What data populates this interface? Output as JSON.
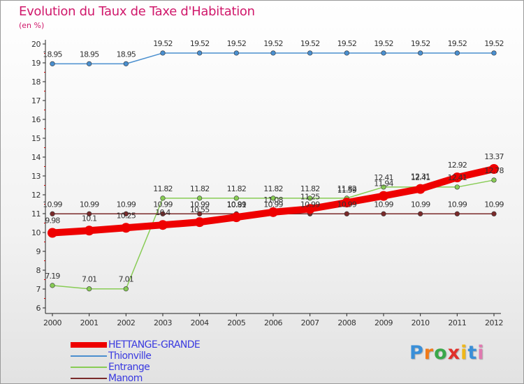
{
  "chart_data": {
    "type": "line",
    "title": "Evolution du Taux de Taxe d'Habitation",
    "subtitle": "(en %)",
    "xlabel": "",
    "ylabel": "(en %)",
    "x": [
      "2000",
      "2001",
      "2002",
      "2003",
      "2004",
      "2005",
      "2006",
      "2007",
      "2008",
      "2009",
      "2010",
      "2011",
      "2012"
    ],
    "ylim": [
      6,
      20
    ],
    "yticks": [
      "6",
      "7",
      "8",
      "9",
      "10",
      "11",
      "12",
      "13",
      "14",
      "15",
      "16",
      "17",
      "18",
      "19",
      "20"
    ],
    "grid": false,
    "legend_position": "bottom-left",
    "series": [
      {
        "name": "HETTANGE-GRANDE",
        "color": "#ee0000",
        "values": [
          9.98,
          10.1,
          10.25,
          10.4,
          10.55,
          10.81,
          11.08,
          11.25,
          11.59,
          11.94,
          12.31,
          12.92,
          13.37
        ],
        "labels": [
          "9.98",
          "10.1",
          "10.25",
          "10.4",
          "10.55",
          "10.81",
          "11.08",
          "11.25",
          "11.59",
          "11.94",
          "12.31",
          "12.92",
          "13.37"
        ]
      },
      {
        "name": "Thionville",
        "color": "#4a8fcf",
        "values": [
          18.95,
          18.95,
          18.95,
          19.52,
          19.52,
          19.52,
          19.52,
          19.52,
          19.52,
          19.52,
          19.52,
          19.52,
          19.52
        ],
        "labels": [
          "18.95",
          "18.95",
          "18.95",
          "19.52",
          "19.52",
          "19.52",
          "19.52",
          "19.52",
          "19.52",
          "19.52",
          "19.52",
          "19.52",
          "19.52"
        ]
      },
      {
        "name": "Entrange",
        "color": "#88cc55",
        "values": [
          7.19,
          7.01,
          7.01,
          11.82,
          11.82,
          11.82,
          11.82,
          11.82,
          11.82,
          12.41,
          12.41,
          12.41,
          12.78
        ],
        "labels": [
          "7.19",
          "7.01",
          "7.01",
          "11.82",
          "11.82",
          "11.82",
          "11.82",
          "11.82",
          "11.82",
          "12.41",
          "12.41",
          "12.41",
          "12.78"
        ]
      },
      {
        "name": "Manom",
        "color": "#7a2a2a",
        "values": [
          10.99,
          10.99,
          10.99,
          10.99,
          10.99,
          10.99,
          10.99,
          10.99,
          10.99,
          10.99,
          10.99,
          10.99,
          10.99
        ],
        "labels": [
          "10.99",
          "10.99",
          "10.99",
          "10.99",
          "10.99",
          "10.99",
          "10.99",
          "10.99",
          "10.99",
          "10.99",
          "10.99",
          "10.99",
          "10.99"
        ]
      }
    ]
  },
  "logo": {
    "letters": [
      "P",
      "r",
      "o",
      "x",
      "i",
      "t",
      "i"
    ],
    "colors": [
      "#3a8fd8",
      "#f07a1a",
      "#3aa84a",
      "#e0302a",
      "#f0b81a",
      "#3a8fd8",
      "#e07ab0"
    ]
  }
}
